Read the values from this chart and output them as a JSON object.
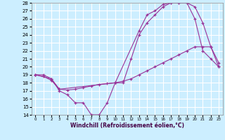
{
  "xlabel": "Windchill (Refroidissement éolien,°C)",
  "bg_color": "#cceeff",
  "grid_color": "#ffffff",
  "line_color": "#993399",
  "xmin": 0,
  "xmax": 23,
  "ymin": 14,
  "ymax": 28,
  "yticks": [
    14,
    15,
    16,
    17,
    18,
    19,
    20,
    21,
    22,
    23,
    24,
    25,
    26,
    27,
    28
  ],
  "xticks": [
    0,
    1,
    2,
    3,
    4,
    5,
    6,
    7,
    8,
    9,
    10,
    11,
    12,
    13,
    14,
    15,
    16,
    17,
    18,
    19,
    20,
    21,
    22,
    23
  ],
  "line1": {
    "x": [
      0,
      1,
      2,
      3,
      4,
      5,
      6,
      7,
      8,
      9,
      10,
      11,
      12,
      13,
      14,
      15,
      16,
      17,
      18,
      19,
      20,
      21,
      22,
      23
    ],
    "y": [
      19,
      19,
      18.5,
      17,
      16.5,
      15.5,
      15.5,
      14,
      14,
      15.5,
      18,
      18,
      21,
      24,
      25.5,
      26.5,
      27.5,
      28,
      28,
      28,
      26,
      22,
      21,
      20
    ]
  },
  "line2": {
    "x": [
      0,
      1,
      2,
      3,
      4,
      5,
      6,
      7,
      8,
      9,
      10,
      11,
      12,
      13,
      14,
      15,
      16,
      17,
      18,
      19,
      20,
      21,
      22,
      23
    ],
    "y": [
      19,
      18.8,
      18.3,
      17.2,
      17.1,
      17.2,
      17.4,
      17.6,
      17.8,
      17.9,
      18,
      18.2,
      18.5,
      19,
      19.5,
      20,
      20.5,
      21,
      21.5,
      22,
      22.5,
      22.5,
      22.5,
      20.5
    ]
  },
  "line3": {
    "x": [
      0,
      2,
      3,
      10,
      13,
      14,
      15,
      16,
      17,
      18,
      19,
      20,
      21,
      22,
      23
    ],
    "y": [
      19,
      18.5,
      17.2,
      18,
      24.5,
      26.5,
      27.0,
      27.8,
      28,
      28,
      28,
      27.5,
      25.5,
      22.5,
      20
    ]
  }
}
